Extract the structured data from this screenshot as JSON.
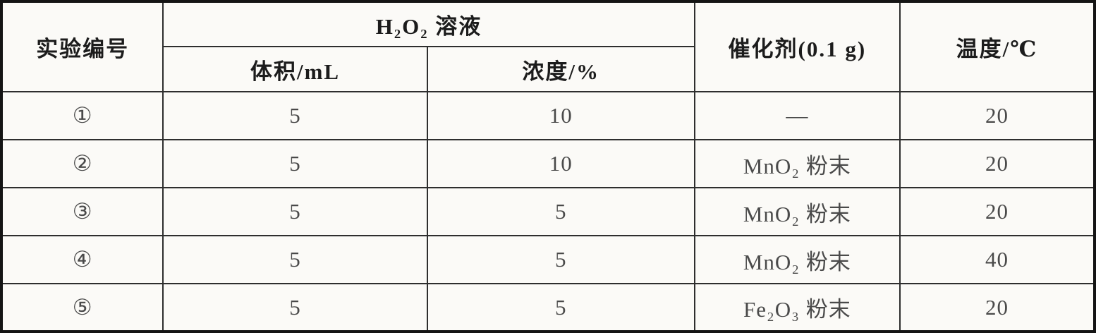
{
  "table": {
    "columns": {
      "experiment": "实验编号",
      "h2o2_group": "H₂O₂ 溶液",
      "volume": "体积/mL",
      "concentration": "浓度/%",
      "catalyst": "催化剂(0.1 g)",
      "temperature": "温度/℃"
    },
    "rows": [
      {
        "no": "①",
        "volume": "5",
        "concentration": "10",
        "catalyst": "—",
        "temperature": "20"
      },
      {
        "no": "②",
        "volume": "5",
        "concentration": "10",
        "catalyst": "MnO₂ 粉末",
        "temperature": "20"
      },
      {
        "no": "③",
        "volume": "5",
        "concentration": "5",
        "catalyst": "MnO₂ 粉末",
        "temperature": "20"
      },
      {
        "no": "④",
        "volume": "5",
        "concentration": "5",
        "catalyst": "MnO₂ 粉末",
        "temperature": "40"
      },
      {
        "no": "⑤",
        "volume": "5",
        "concentration": "5",
        "catalyst": "Fe₂O₃ 粉末",
        "temperature": "20"
      }
    ]
  },
  "colors": {
    "outer_border": "#141414",
    "inner_border": "#2e2e2e",
    "background": "#fbfaf7",
    "header_text": "#1c1c1c",
    "data_text": "#4a4a4a"
  }
}
